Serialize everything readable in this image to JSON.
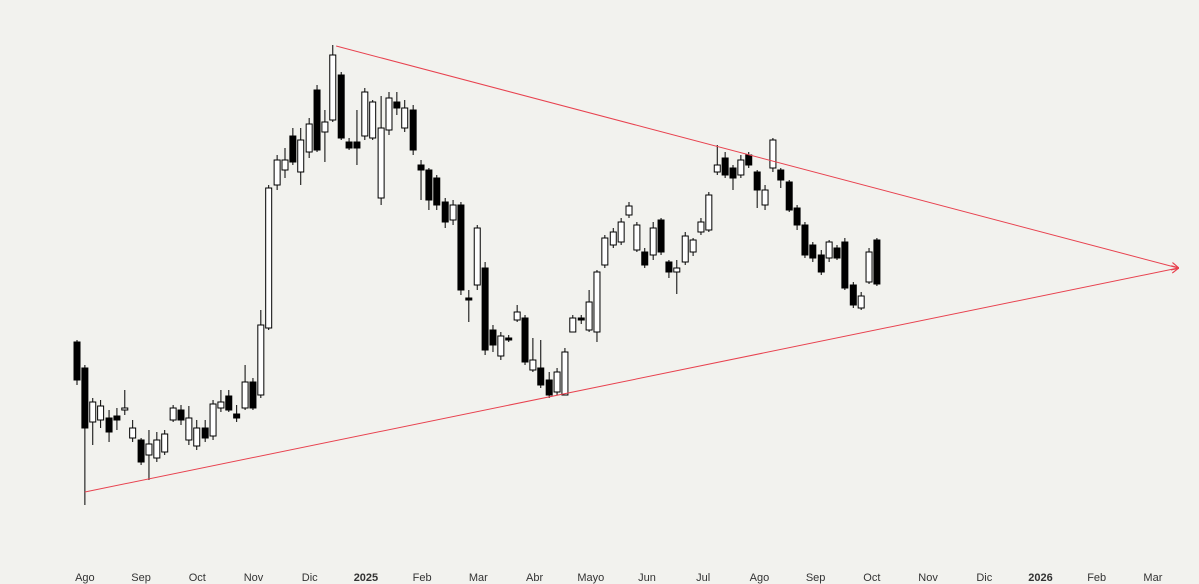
{
  "chart_data": {
    "type": "candlestick",
    "xlim": [
      -1.51,
      19.82
    ],
    "ylim": [
      0,
      500
    ],
    "xticks": [
      {
        "value": 0,
        "label": "Ago"
      },
      {
        "value": 1,
        "label": "Sep"
      },
      {
        "value": 2,
        "label": "Oct"
      },
      {
        "value": 3,
        "label": "Nov"
      },
      {
        "value": 4,
        "label": "Dic"
      },
      {
        "value": 5,
        "label": "2025"
      },
      {
        "value": 6,
        "label": "Feb"
      },
      {
        "value": 7,
        "label": "Mar"
      },
      {
        "value": 8,
        "label": "Abr"
      },
      {
        "value": 9,
        "label": "Mayo"
      },
      {
        "value": 10,
        "label": "Jun"
      },
      {
        "value": 11,
        "label": "Jul"
      },
      {
        "value": 12,
        "label": "Ago"
      },
      {
        "value": 13,
        "label": "Sep"
      },
      {
        "value": 14,
        "label": "Oct"
      },
      {
        "value": 15,
        "label": "Nov"
      },
      {
        "value": 16,
        "label": "Dic"
      },
      {
        "value": 17,
        "label": "2026"
      },
      {
        "value": 18,
        "label": "Feb"
      },
      {
        "value": 19,
        "label": "Mar"
      }
    ],
    "up_color": "#ffffff",
    "down_color": "#000000",
    "wick_color": "#000000",
    "x": [
      -0.14,
      0,
      0.14,
      0.28,
      0.43,
      0.57,
      0.71,
      0.85,
      1.0,
      1.14,
      1.28,
      1.42,
      1.57,
      1.71,
      1.85,
      1.99,
      2.14,
      2.28,
      2.42,
      2.56,
      2.7,
      2.85,
      2.99,
      3.13,
      3.27,
      3.42,
      3.56,
      3.7,
      3.84,
      3.99,
      4.13,
      4.27,
      4.41,
      4.56,
      4.7,
      4.84,
      4.98,
      5.12,
      5.27,
      5.41,
      5.55,
      5.69,
      5.84,
      5.98,
      6.12,
      6.26,
      6.41,
      6.55,
      6.69,
      6.83,
      6.98,
      7.12,
      7.26,
      7.4,
      7.54,
      7.69,
      7.83,
      7.97,
      8.11,
      8.26,
      8.4,
      8.54,
      8.68,
      8.83,
      8.97,
      9.11,
      9.25,
      9.4,
      9.54,
      9.68,
      9.82,
      9.96,
      10.11,
      10.25,
      10.39,
      10.53,
      10.68,
      10.82,
      10.96,
      11.1,
      11.25,
      11.39,
      11.53,
      11.67,
      11.81,
      11.96,
      12.1,
      12.24,
      12.38,
      12.53,
      12.67,
      12.81,
      12.95,
      13.1,
      13.24,
      13.38,
      13.52,
      13.67,
      13.81,
      13.95,
      14.09
    ],
    "open": [
      178,
      152,
      98,
      100,
      102,
      104,
      110,
      82,
      80,
      65,
      62,
      68,
      100,
      110,
      80,
      74,
      92,
      84,
      112,
      124,
      106,
      112,
      138,
      125,
      192,
      335,
      350,
      384,
      348,
      368,
      430,
      388,
      400,
      445,
      378,
      378,
      384,
      382,
      322,
      390,
      418,
      392,
      410,
      355,
      350,
      342,
      318,
      300,
      315,
      222,
      235,
      252,
      190,
      164,
      182,
      200,
      202,
      150,
      152,
      140,
      128,
      125,
      188,
      202,
      190,
      188,
      255,
      275,
      278,
      305,
      270,
      268,
      265,
      300,
      258,
      248,
      258,
      268,
      288,
      290,
      348,
      362,
      352,
      345,
      365,
      348,
      315,
      352,
      350,
      338,
      312,
      295,
      275,
      265,
      262,
      272,
      278,
      235,
      212,
      238,
      280
    ],
    "high": [
      180,
      155,
      122,
      120,
      110,
      112,
      130,
      100,
      82,
      90,
      88,
      90,
      115,
      115,
      114,
      100,
      100,
      120,
      130,
      130,
      115,
      155,
      142,
      210,
      335,
      365,
      372,
      392,
      392,
      402,
      435,
      410,
      475,
      448,
      382,
      410,
      432,
      420,
      424,
      428,
      428,
      420,
      415,
      360,
      352,
      345,
      322,
      320,
      318,
      230,
      295,
      258,
      195,
      188,
      185,
      215,
      205,
      182,
      180,
      148,
      152,
      172,
      205,
      205,
      230,
      250,
      285,
      292,
      302,
      318,
      298,
      272,
      298,
      302,
      260,
      260,
      288,
      282,
      302,
      328,
      375,
      368,
      355,
      365,
      368,
      350,
      335,
      382,
      352,
      340,
      315,
      298,
      278,
      270,
      280,
      275,
      282,
      238,
      228,
      272,
      282
    ],
    "low": [
      135,
      15,
      75,
      92,
      78,
      90,
      105,
      78,
      55,
      40,
      58,
      65,
      98,
      95,
      75,
      70,
      78,
      80,
      108,
      108,
      98,
      110,
      110,
      122,
      190,
      330,
      342,
      355,
      335,
      362,
      368,
      358,
      398,
      380,
      370,
      355,
      380,
      380,
      315,
      385,
      405,
      388,
      365,
      320,
      310,
      310,
      292,
      295,
      225,
      198,
      230,
      165,
      168,
      160,
      178,
      198,
      155,
      148,
      132,
      122,
      125,
      125,
      188,
      196,
      188,
      178,
      252,
      272,
      275,
      302,
      268,
      252,
      260,
      265,
      242,
      226,
      255,
      264,
      285,
      288,
      345,
      342,
      330,
      342,
      352,
      312,
      310,
      348,
      332,
      308,
      290,
      262,
      258,
      245,
      258,
      260,
      230,
      212,
      210,
      236,
      234
    ],
    "close": [
      140,
      92,
      118,
      114,
      88,
      100,
      112,
      92,
      58,
      76,
      80,
      86,
      112,
      100,
      102,
      92,
      82,
      116,
      118,
      110,
      102,
      138,
      112,
      195,
      332,
      360,
      360,
      358,
      380,
      396,
      370,
      398,
      465,
      382,
      372,
      372,
      428,
      418,
      392,
      422,
      412,
      412,
      370,
      350,
      320,
      315,
      298,
      315,
      230,
      220,
      292,
      170,
      175,
      184,
      180,
      208,
      158,
      160,
      135,
      125,
      148,
      168,
      202,
      200,
      218,
      248,
      282,
      288,
      298,
      314,
      295,
      255,
      292,
      268,
      248,
      252,
      284,
      280,
      298,
      325,
      355,
      345,
      342,
      360,
      355,
      330,
      330,
      380,
      340,
      310,
      295,
      265,
      262,
      248,
      278,
      262,
      232,
      215,
      224,
      268,
      236
    ],
    "trendlines": [
      {
        "x": [
          4.47,
          19.45
        ],
        "y": [
          474,
          252
        ],
        "color": "#e8424f"
      },
      {
        "x": [
          0,
          19.45
        ],
        "y": [
          28,
          252
        ],
        "color": "#e8424f"
      }
    ]
  }
}
